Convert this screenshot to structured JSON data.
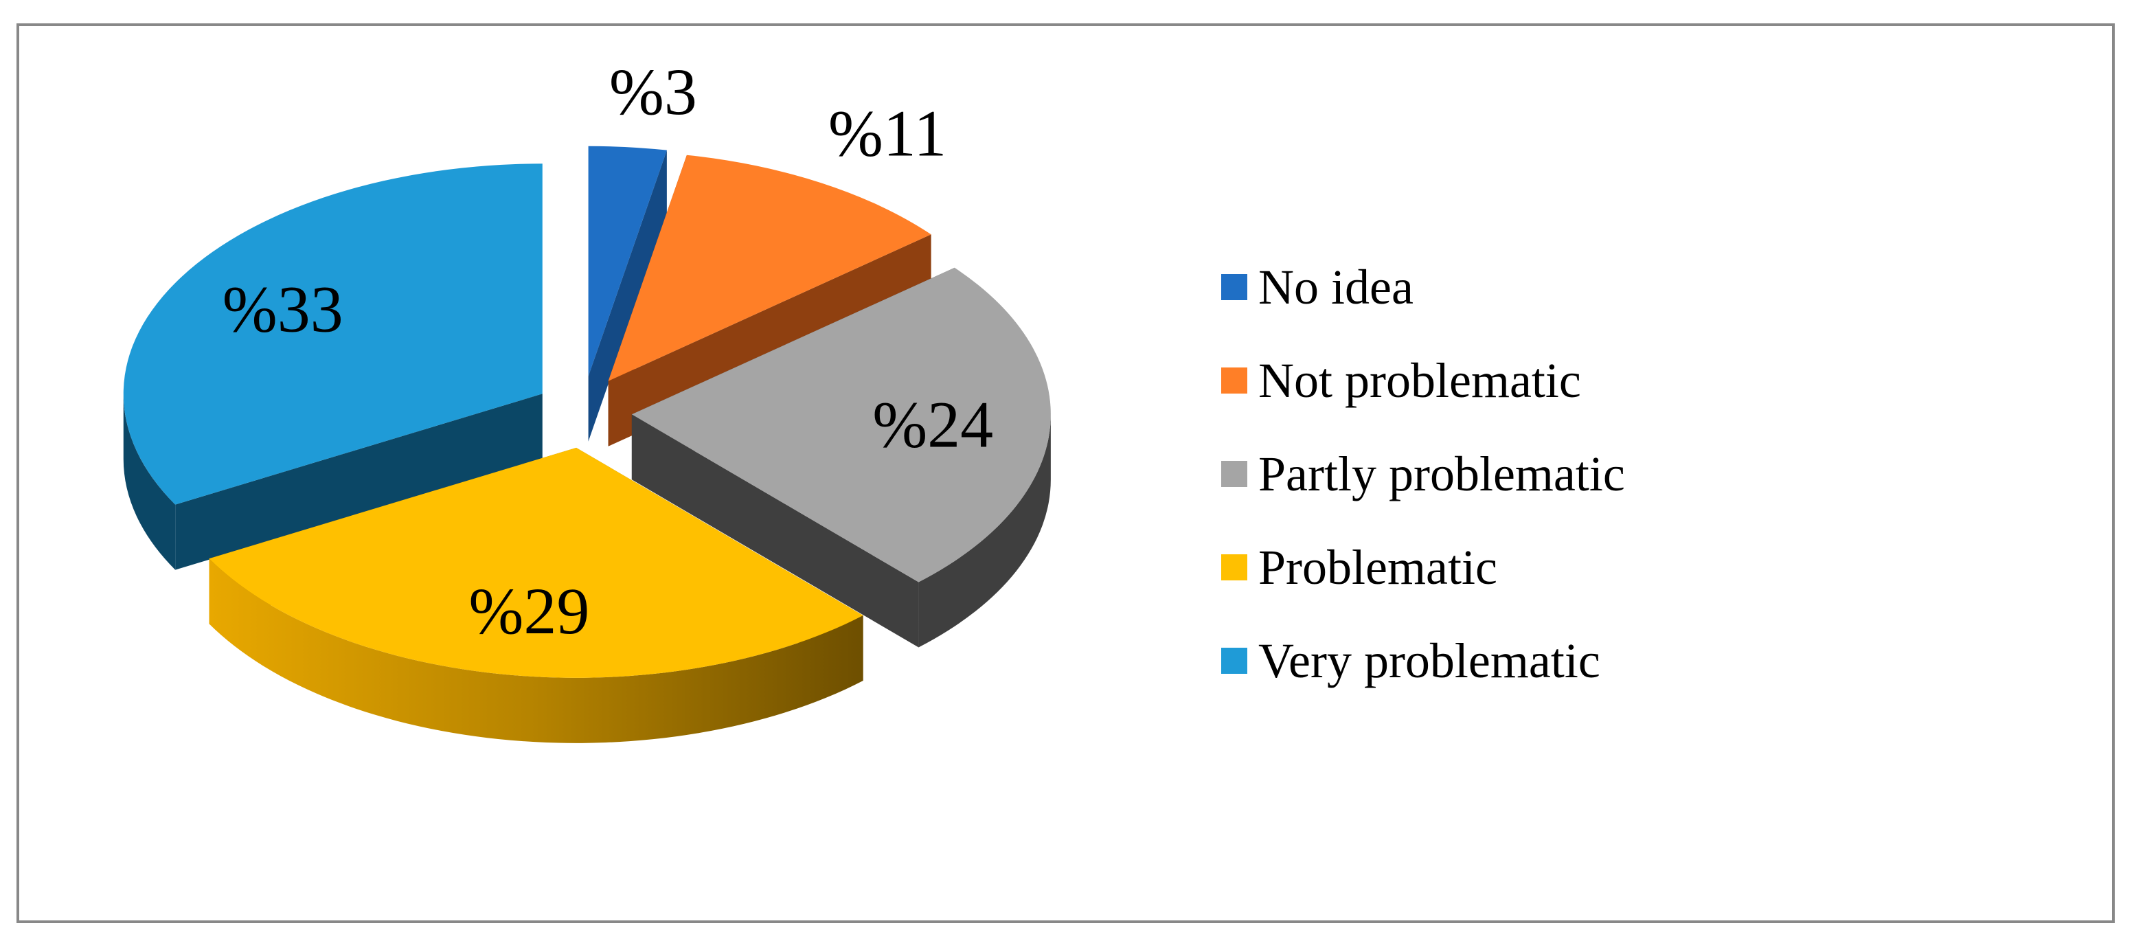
{
  "chart_data": {
    "type": "pie",
    "title": "",
    "slices": [
      {
        "name": "No idea",
        "value": 3,
        "label": "%3",
        "color": "#1F6FC5",
        "side_color": "#144A85"
      },
      {
        "name": "Not problematic",
        "value": 11,
        "label": "%11",
        "color": "#FF7F27",
        "side_color": "#8F4010"
      },
      {
        "name": "Partly problematic",
        "value": 24,
        "label": "%24",
        "color": "#A5A5A5",
        "side_color": "#3F3F3F"
      },
      {
        "name": "Problematic",
        "value": 29,
        "label": "%29",
        "color": "#FFC000",
        "side_color": "#8A6400"
      },
      {
        "name": "Very problematic",
        "value": 33,
        "label": "%33",
        "color": "#1F9BD7",
        "side_color": "#0B4766"
      }
    ],
    "legend_position": "right",
    "style": "3d-exploded"
  }
}
